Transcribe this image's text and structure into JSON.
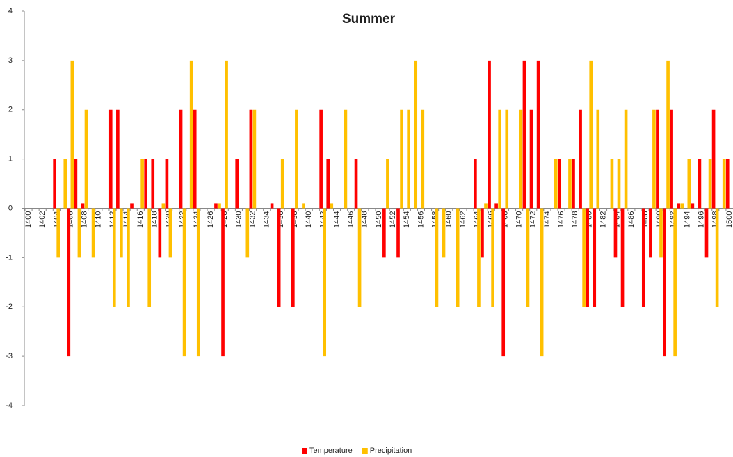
{
  "chart_data": {
    "type": "bar",
    "title": "Summer",
    "categories": [
      1400,
      null,
      1402,
      null,
      1404,
      null,
      1406,
      null,
      1408,
      null,
      1410,
      null,
      1412,
      null,
      1414,
      null,
      1416,
      null,
      1418,
      null,
      1420,
      null,
      1422,
      null,
      1424,
      null,
      1426,
      null,
      1428,
      null,
      1430,
      null,
      1432,
      null,
      1434,
      null,
      1436,
      null,
      1438,
      null,
      1440,
      null,
      1442,
      null,
      1444,
      null,
      1446,
      null,
      1448,
      null,
      1450,
      null,
      1452,
      null,
      1454,
      null,
      1456,
      null,
      1458,
      null,
      1460,
      null,
      1462,
      null,
      1464,
      null,
      1466,
      null,
      1468,
      null,
      1470,
      null,
      1472,
      null,
      1474,
      null,
      1476,
      null,
      1478,
      null,
      1480,
      null,
      1482,
      null,
      1484,
      null,
      1486,
      null,
      1488,
      null,
      1490,
      null,
      1492,
      null,
      1494,
      null,
      1496,
      null,
      1498,
      null,
      1500
    ],
    "series": [
      {
        "name": "Temperature",
        "color": "#ff0000",
        "values": [
          0,
          0,
          0,
          0,
          1,
          0,
          -3,
          1,
          0.1,
          0,
          0,
          0,
          2,
          2,
          0,
          0.1,
          0,
          1,
          1,
          -1,
          1,
          0,
          2,
          0,
          2,
          0,
          0,
          0.1,
          -3,
          0,
          1,
          0,
          2,
          0,
          0,
          0.1,
          -2,
          0,
          -2,
          0,
          0,
          0,
          2,
          1,
          0,
          0,
          0,
          1,
          0,
          0,
          0,
          -1,
          0,
          -1,
          0,
          0,
          0,
          0,
          0,
          0,
          0,
          0,
          0,
          0,
          1,
          -1,
          3,
          0.1,
          -3,
          0,
          0,
          3,
          2,
          3,
          0,
          0,
          1,
          0,
          1,
          2,
          -2,
          -2,
          0,
          0,
          -1,
          -2,
          0,
          0,
          -2,
          -1,
          2,
          -3,
          2,
          0.1,
          0,
          0.1,
          1,
          -1,
          2,
          0,
          1
        ]
      },
      {
        "name": "Precipitation",
        "color": "#ffc000",
        "values": [
          0,
          0,
          0,
          0,
          -1,
          1,
          3,
          -1,
          2,
          -1,
          0,
          0,
          -2,
          -1,
          -2,
          0,
          1,
          -2,
          0,
          0.1,
          -1,
          0,
          -3,
          3,
          -3,
          0,
          0,
          0.1,
          3,
          0,
          0,
          -1,
          2,
          0,
          0,
          0,
          1,
          0,
          2,
          0.1,
          0,
          0,
          -3,
          0.1,
          0,
          2,
          0,
          -2,
          0,
          0,
          0,
          1,
          0,
          2,
          2,
          3,
          2,
          0,
          -2,
          -1,
          0,
          -2,
          0,
          0,
          -2,
          0.1,
          -2,
          2,
          2,
          0,
          2,
          -2,
          0,
          -3,
          0,
          1,
          0,
          1,
          0,
          -2,
          3,
          2,
          0,
          1,
          1,
          2,
          0,
          0,
          0,
          2,
          -1,
          3,
          -3,
          0.1,
          1,
          0,
          0,
          1,
          -2,
          1,
          0
        ]
      }
    ],
    "ylim": [
      -4,
      4
    ],
    "yticks": [
      -4,
      -3,
      -2,
      -1,
      0,
      1,
      2,
      3,
      4
    ],
    "legend": "bottom"
  }
}
